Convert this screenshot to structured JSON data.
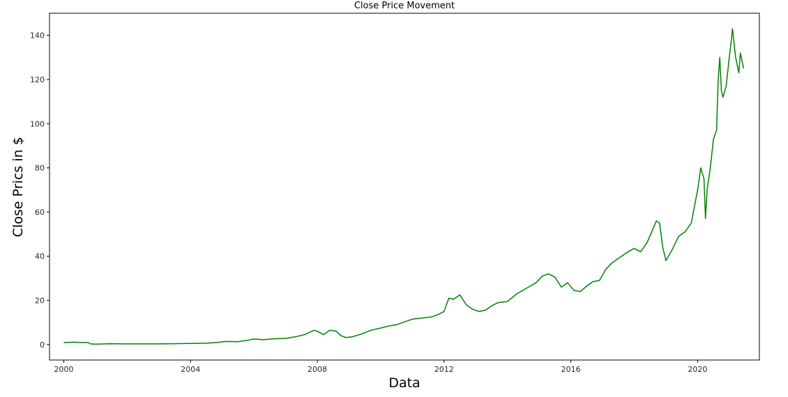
{
  "chart_data": {
    "type": "line",
    "title": "Close Price Movement",
    "xlabel": "Data",
    "ylabel": "Close Prics in $",
    "xlim": [
      1999.55,
      2021.95
    ],
    "ylim": [
      -7,
      150
    ],
    "x_ticks": [
      {
        "value": 2000,
        "label": "2000"
      },
      {
        "value": 2004,
        "label": "2004"
      },
      {
        "value": 2008,
        "label": "2008"
      },
      {
        "value": 2012,
        "label": "2012"
      },
      {
        "value": 2016,
        "label": "2016"
      },
      {
        "value": 2020,
        "label": "2020"
      }
    ],
    "y_ticks": [
      {
        "value": 0,
        "label": "0"
      },
      {
        "value": 20,
        "label": "20"
      },
      {
        "value": 40,
        "label": "40"
      },
      {
        "value": 60,
        "label": "60"
      },
      {
        "value": 80,
        "label": "80"
      },
      {
        "value": 100,
        "label": "100"
      },
      {
        "value": 120,
        "label": "120"
      },
      {
        "value": 140,
        "label": "140"
      }
    ],
    "grid": false,
    "series": [
      {
        "color": "#008000",
        "x": [
          2000.0,
          2000.3,
          2000.6,
          2000.75,
          2000.85,
          2001.0,
          2001.5,
          2002.0,
          2002.5,
          2003.0,
          2003.5,
          2004.0,
          2004.5,
          2004.8,
          2005.1,
          2005.5,
          2005.8,
          2006.0,
          2006.3,
          2006.6,
          2007.0,
          2007.3,
          2007.6,
          2007.9,
          2008.0,
          2008.2,
          2008.4,
          2008.6,
          2008.75,
          2008.9,
          2009.1,
          2009.4,
          2009.7,
          2010.0,
          2010.3,
          2010.5,
          2010.8,
          2011.0,
          2011.3,
          2011.6,
          2011.8,
          2012.0,
          2012.15,
          2012.3,
          2012.5,
          2012.7,
          2012.9,
          2013.1,
          2013.3,
          2013.5,
          2013.7,
          2014.0,
          2014.3,
          2014.6,
          2014.9,
          2015.1,
          2015.3,
          2015.5,
          2015.7,
          2015.9,
          2016.1,
          2016.3,
          2016.5,
          2016.7,
          2016.9,
          2017.1,
          2017.3,
          2017.6,
          2017.8,
          2018.0,
          2018.2,
          2018.4,
          2018.55,
          2018.7,
          2018.8,
          2018.9,
          2019.0,
          2019.2,
          2019.4,
          2019.6,
          2019.8,
          2020.0,
          2020.1,
          2020.2,
          2020.25,
          2020.3,
          2020.4,
          2020.5,
          2020.6,
          2020.65,
          2020.7,
          2020.75,
          2020.8,
          2020.9,
          2021.0,
          2021.05,
          2021.1,
          2021.2,
          2021.3,
          2021.35,
          2021.45
        ],
        "y": [
          0.9,
          1.1,
          0.9,
          1.0,
          0.3,
          0.2,
          0.4,
          0.3,
          0.3,
          0.3,
          0.4,
          0.5,
          0.6,
          0.9,
          1.4,
          1.3,
          1.9,
          2.5,
          2.2,
          2.6,
          2.8,
          3.5,
          4.5,
          6.5,
          6.0,
          4.5,
          6.5,
          6.0,
          4.0,
          3.2,
          3.5,
          4.8,
          6.5,
          7.5,
          8.5,
          9.0,
          10.5,
          11.5,
          12.0,
          12.5,
          13.5,
          15.0,
          21.0,
          20.5,
          22.5,
          18.0,
          16.0,
          15.0,
          15.5,
          17.5,
          19.0,
          19.5,
          23.0,
          25.5,
          28.0,
          31.0,
          32.0,
          30.5,
          26.0,
          28.0,
          24.5,
          24.0,
          26.5,
          28.5,
          29.0,
          34.0,
          37.0,
          40.0,
          42.0,
          43.5,
          42.0,
          46.0,
          51.0,
          56.0,
          55.0,
          44.0,
          38.0,
          43.0,
          49.0,
          51.0,
          55.0,
          70.0,
          80.0,
          75.0,
          57.0,
          70.0,
          80.0,
          93.0,
          97.0,
          120.0,
          130.0,
          115.0,
          112.0,
          117.0,
          130.0,
          136.0,
          143.0,
          130.0,
          123.0,
          132.0,
          125.0
        ]
      }
    ]
  }
}
